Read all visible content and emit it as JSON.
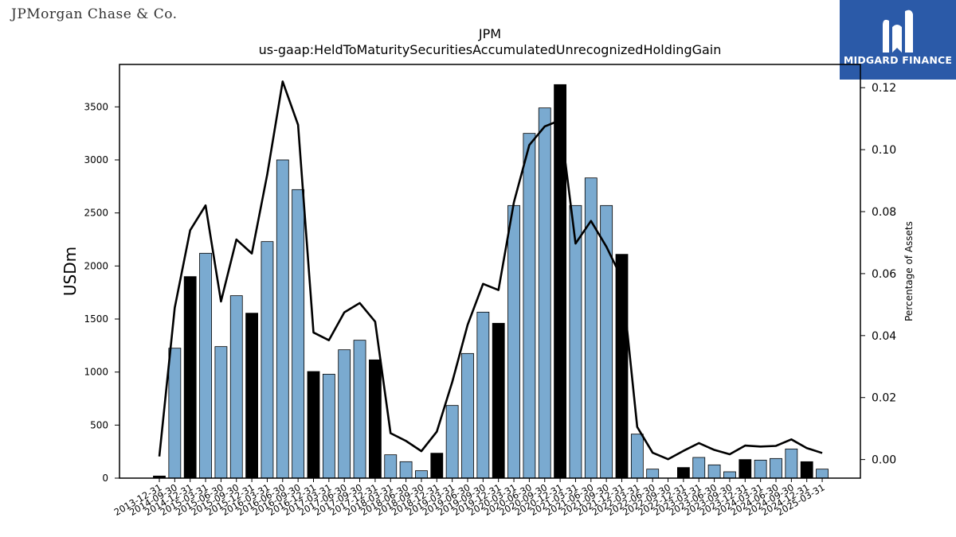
{
  "brand": {
    "left_logo_text": "JPMorgan Chase & Co.",
    "right_logo_text": "MIDGARD FINANCE",
    "right_logo_color": "#2b5aa8"
  },
  "chart_data": {
    "type": "bar",
    "title": "JPM",
    "subtitle": "us-gaap:HeldToMaturitySecuritiesAccumulatedUnrecognizedHoldingGain",
    "ylabel": "USDm",
    "y2label": "Percentage of Assets",
    "ylim": [
      0,
      3900
    ],
    "y2lim": [
      -0.006,
      0.1275
    ],
    "yticks": [
      0,
      500,
      1000,
      1500,
      2000,
      2500,
      3000,
      3500
    ],
    "y2ticks": [
      "0.00",
      "0.02",
      "0.04",
      "0.06",
      "0.08",
      "0.10",
      "0.12"
    ],
    "bar_colors": {
      "quarter": "#7aaad0",
      "year_end": "#000000"
    },
    "line_color": "#000000",
    "categories": [
      "2013-12-31",
      "2014-09-30",
      "2014-12-31",
      "2015-03-31",
      "2015-06-30",
      "2015-09-30",
      "2015-12-31",
      "2016-03-31",
      "2016-06-30",
      "2016-09-30",
      "2016-12-31",
      "2017-03-31",
      "2017-06-30",
      "2017-09-30",
      "2017-12-31",
      "2018-03-31",
      "2018-06-30",
      "2018-09-30",
      "2018-12-31",
      "2019-03-31",
      "2019-06-30",
      "2019-09-30",
      "2019-12-31",
      "2020-03-31",
      "2020-06-30",
      "2020-09-30",
      "2020-12-31",
      "2021-03-31",
      "2021-06-30",
      "2021-09-30",
      "2021-12-31",
      "2022-03-31",
      "2022-06-30",
      "2022-09-30",
      "2022-12-31",
      "2023-03-31",
      "2023-06-30",
      "2023-09-30",
      "2023-12-31",
      "2024-03-31",
      "2024-06-30",
      "2024-09-30",
      "2024-12-31",
      "2025-03-31"
    ],
    "values": [
      20,
      1225,
      1900,
      2120,
      1240,
      1720,
      1555,
      2230,
      3000,
      2720,
      1005,
      980,
      1210,
      1300,
      1115,
      220,
      155,
      70,
      235,
      685,
      1175,
      1565,
      1460,
      2570,
      3250,
      3490,
      3710,
      2570,
      2830,
      2570,
      2110,
      415,
      85,
      0,
      100,
      195,
      125,
      60,
      175,
      170,
      185,
      275,
      155,
      85
    ],
    "year_end": [
      true,
      false,
      true,
      false,
      false,
      false,
      true,
      false,
      false,
      false,
      true,
      false,
      false,
      false,
      true,
      false,
      false,
      false,
      true,
      false,
      false,
      false,
      true,
      false,
      false,
      false,
      true,
      false,
      false,
      false,
      true,
      false,
      false,
      false,
      true,
      false,
      false,
      false,
      true,
      false,
      false,
      false,
      true,
      false
    ],
    "series": [
      {
        "axis": "right",
        "type": "line",
        "values": [
          0.001,
          0.049,
          0.074,
          0.082,
          0.051,
          0.071,
          0.0665,
          0.092,
          0.122,
          0.108,
          0.041,
          0.0385,
          0.0475,
          0.0505,
          0.0445,
          0.0085,
          0.006,
          0.0027,
          0.009,
          0.025,
          0.0435,
          0.0567,
          0.0547,
          0.083,
          0.1015,
          0.1075,
          0.1095,
          0.0697,
          0.077,
          0.0687,
          0.0585,
          0.0105,
          0.0022,
          0.0001,
          0.0028,
          0.0053,
          0.0031,
          0.0017,
          0.0045,
          0.0042,
          0.0044,
          0.0065,
          0.0037,
          0.0021
        ]
      }
    ]
  }
}
